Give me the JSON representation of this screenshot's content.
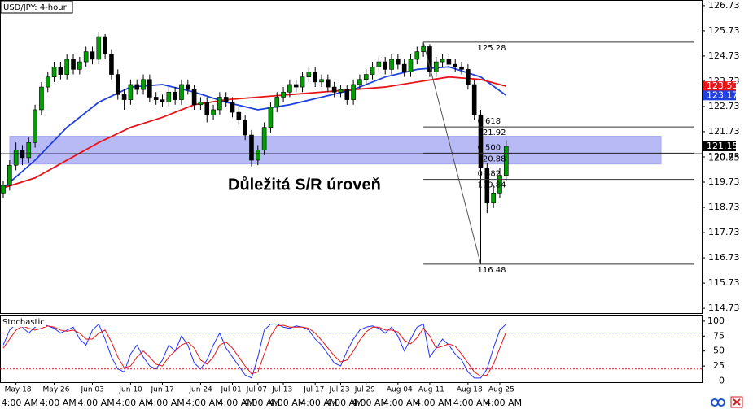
{
  "chart_data": {
    "type": "candlestick",
    "title": "USD/JPY: 4-hour",
    "categories": [
      null,
      null,
      "May 18",
      null,
      null,
      null,
      null,
      null,
      "May 26",
      null,
      null,
      null,
      null,
      null,
      "Jun 03",
      null,
      null,
      null,
      null,
      null,
      "Jun 10",
      null,
      null,
      null,
      null,
      "Jun 17",
      null,
      null,
      null,
      null,
      null,
      "Jun 24",
      null,
      null,
      null,
      null,
      "Jul 01",
      null,
      null,
      null,
      "Jul 07",
      null,
      null,
      null,
      "Jul 13",
      null,
      null,
      null,
      null,
      "Jul 17",
      null,
      null,
      null,
      "Jul 23",
      null,
      null,
      null,
      "Jul 29",
      null,
      null,
      null,
      null,
      "Aug 04",
      null,
      null,
      null,
      null,
      "Aug 11",
      null,
      null,
      null,
      null,
      null,
      "Aug 18",
      null,
      null,
      null,
      null,
      "Aug 25",
      null
    ],
    "time_label": "4:00 AM",
    "open": [
      119.3,
      119.6,
      120.4,
      121.0,
      120.7,
      121.3,
      122.6,
      123.5,
      123.9,
      124.3,
      124.0,
      124.6,
      124.2,
      124.5,
      124.9,
      124.6,
      125.5,
      124.8,
      124.0,
      123.2,
      123.0,
      123.6,
      123.4,
      123.8,
      123.1,
      123.0,
      122.9,
      123.3,
      123.0,
      123.6,
      123.4,
      122.8,
      122.9,
      122.4,
      122.6,
      123.1,
      122.9,
      122.5,
      122.2,
      121.6,
      120.6,
      121.0,
      121.9,
      122.7,
      123.1,
      123.3,
      123.6,
      123.5,
      123.9,
      124.1,
      123.7,
      123.8,
      123.5,
      123.3,
      123.4,
      123.0,
      123.6,
      123.8,
      124.0,
      124.3,
      124.5,
      124.2,
      124.6,
      124.4,
      124.1,
      124.6,
      124.9,
      125.1,
      124.1,
      124.5,
      124.6,
      124.4,
      124.3,
      124.2,
      123.6,
      122.4,
      120.3,
      118.9,
      119.3,
      120.0
    ],
    "high": [
      119.8,
      120.6,
      121.3,
      121.2,
      121.5,
      122.8,
      123.7,
      124.1,
      124.5,
      124.5,
      124.8,
      124.8,
      124.7,
      125.1,
      125.1,
      125.7,
      125.6,
      125.0,
      124.2,
      123.4,
      123.8,
      123.8,
      124.0,
      124.0,
      123.3,
      123.2,
      123.5,
      123.5,
      123.8,
      123.8,
      123.6,
      123.1,
      123.1,
      122.8,
      123.3,
      123.3,
      123.1,
      122.7,
      122.4,
      121.8,
      121.2,
      122.1,
      122.9,
      123.3,
      123.5,
      123.8,
      123.8,
      124.1,
      124.3,
      124.3,
      124.0,
      124.0,
      123.7,
      123.6,
      123.6,
      123.8,
      124.0,
      124.2,
      124.5,
      124.7,
      124.7,
      124.8,
      124.8,
      124.6,
      124.8,
      125.1,
      125.28,
      125.2,
      124.7,
      124.8,
      124.8,
      124.6,
      124.5,
      124.4,
      123.8,
      122.6,
      120.5,
      119.6,
      120.3,
      121.4
    ],
    "low": [
      119.1,
      119.4,
      120.2,
      120.4,
      120.5,
      121.1,
      122.4,
      123.3,
      123.7,
      123.8,
      123.8,
      124.0,
      124.0,
      124.3,
      124.4,
      124.4,
      124.6,
      123.8,
      123.0,
      122.6,
      122.8,
      123.2,
      123.2,
      122.9,
      122.8,
      122.7,
      122.7,
      122.8,
      122.8,
      123.2,
      122.6,
      122.6,
      122.1,
      122.2,
      122.4,
      122.7,
      122.3,
      122.0,
      121.4,
      120.35,
      120.4,
      120.8,
      121.7,
      122.5,
      122.9,
      123.1,
      123.3,
      123.3,
      123.7,
      123.5,
      123.5,
      123.3,
      123.1,
      123.1,
      122.8,
      122.8,
      123.4,
      123.6,
      123.8,
      124.1,
      124.0,
      124.0,
      124.2,
      123.9,
      123.9,
      124.4,
      124.7,
      123.9,
      123.9,
      124.3,
      124.2,
      124.1,
      124.0,
      123.4,
      122.2,
      116.48,
      118.5,
      118.7,
      119.1,
      119.8
    ],
    "close": [
      119.6,
      120.4,
      121.0,
      120.7,
      121.3,
      122.6,
      123.5,
      123.9,
      124.3,
      124.0,
      124.6,
      124.2,
      124.5,
      124.9,
      124.6,
      125.5,
      124.8,
      124.0,
      123.2,
      123.0,
      123.6,
      123.4,
      123.8,
      123.1,
      123.0,
      122.9,
      123.3,
      123.0,
      123.6,
      123.4,
      122.8,
      122.9,
      122.4,
      122.6,
      123.1,
      122.9,
      122.5,
      122.2,
      121.6,
      120.6,
      121.0,
      121.9,
      122.7,
      123.1,
      123.3,
      123.6,
      123.5,
      123.9,
      124.1,
      123.7,
      123.8,
      123.5,
      123.3,
      123.4,
      123.0,
      123.6,
      123.8,
      124.0,
      124.3,
      124.5,
      124.2,
      124.6,
      124.4,
      124.1,
      124.6,
      124.9,
      125.1,
      124.1,
      124.5,
      124.6,
      124.4,
      124.3,
      124.2,
      123.6,
      122.4,
      120.3,
      118.9,
      119.3,
      120.0,
      121.15
    ],
    "up_color": "#00a000",
    "down_color": "#000000",
    "ylim": [
      114.54,
      126.92
    ],
    "yticks": [
      126.73,
      125.73,
      124.73,
      123.73,
      122.73,
      121.73,
      120.73,
      119.73,
      118.73,
      117.73,
      116.73,
      115.73,
      114.73
    ],
    "moving_averages": [
      {
        "color": "#1f3fe0",
        "x": [
          0,
          5,
          10,
          15,
          20,
          25,
          30,
          35,
          40,
          45,
          50,
          55,
          60,
          65,
          70,
          75,
          79
        ],
        "values": [
          119.5,
          120.6,
          121.9,
          122.9,
          123.5,
          123.6,
          123.3,
          122.9,
          122.6,
          122.8,
          123.1,
          123.4,
          123.9,
          124.2,
          124.3,
          123.9,
          123.17
        ]
      },
      {
        "color": "#e8141a",
        "x": [
          0,
          5,
          10,
          15,
          20,
          25,
          30,
          35,
          40,
          45,
          50,
          55,
          60,
          65,
          70,
          75,
          79
        ],
        "values": [
          119.5,
          119.9,
          120.6,
          121.3,
          121.9,
          122.3,
          122.8,
          123.0,
          123.1,
          123.2,
          123.3,
          123.4,
          123.5,
          123.7,
          123.9,
          123.8,
          123.53
        ]
      }
    ],
    "sr_zone": [
      120.45,
      121.55
    ],
    "sr_level": 120.85,
    "annotation": "Důležitá S/R úroveň",
    "fib": {
      "high": 125.28,
      "low": 116.48,
      "levels": [
        {
          "ratio": "0.618",
          "value": 121.92
        },
        {
          "ratio": "0.500",
          "value": 120.88
        },
        {
          "ratio": "0.382",
          "value": 119.84
        }
      ]
    },
    "stochastic": {
      "title": "Stochastic",
      "ylim": [
        -2,
        108
      ],
      "yticks": [
        0,
        25,
        50,
        75,
        100
      ],
      "levels": [
        {
          "value": 80,
          "color": "#3344cc"
        },
        {
          "value": 20,
          "color": "#e8141a"
        }
      ],
      "series": [
        {
          "color": "#2233ff",
          "values": [
            60,
            85,
            95,
            90,
            80,
            90,
            95,
            92,
            88,
            80,
            85,
            90,
            70,
            60,
            85,
            95,
            70,
            40,
            20,
            15,
            45,
            60,
            40,
            25,
            20,
            35,
            60,
            50,
            75,
            60,
            30,
            20,
            35,
            60,
            80,
            55,
            40,
            25,
            10,
            5,
            40,
            85,
            95,
            95,
            90,
            88,
            92,
            90,
            85,
            70,
            60,
            45,
            30,
            25,
            50,
            70,
            85,
            90,
            92,
            88,
            80,
            90,
            75,
            50,
            70,
            90,
            95,
            40,
            55,
            70,
            60,
            45,
            35,
            15,
            5,
            5,
            20,
            55,
            85,
            95
          ]
        },
        {
          "color": "#e8141a",
          "values": [
            55,
            70,
            85,
            92,
            88,
            85,
            88,
            92,
            90,
            85,
            83,
            85,
            80,
            70,
            70,
            80,
            85,
            65,
            40,
            22,
            25,
            40,
            50,
            40,
            28,
            25,
            40,
            50,
            60,
            65,
            55,
            35,
            28,
            40,
            60,
            65,
            55,
            40,
            25,
            12,
            15,
            45,
            75,
            92,
            93,
            90,
            90,
            90,
            88,
            80,
            68,
            55,
            42,
            32,
            35,
            50,
            68,
            82,
            90,
            90,
            85,
            85,
            82,
            68,
            62,
            72,
            88,
            75,
            55,
            58,
            62,
            58,
            45,
            30,
            15,
            8,
            10,
            28,
            55,
            82
          ]
        }
      ]
    }
  }
}
